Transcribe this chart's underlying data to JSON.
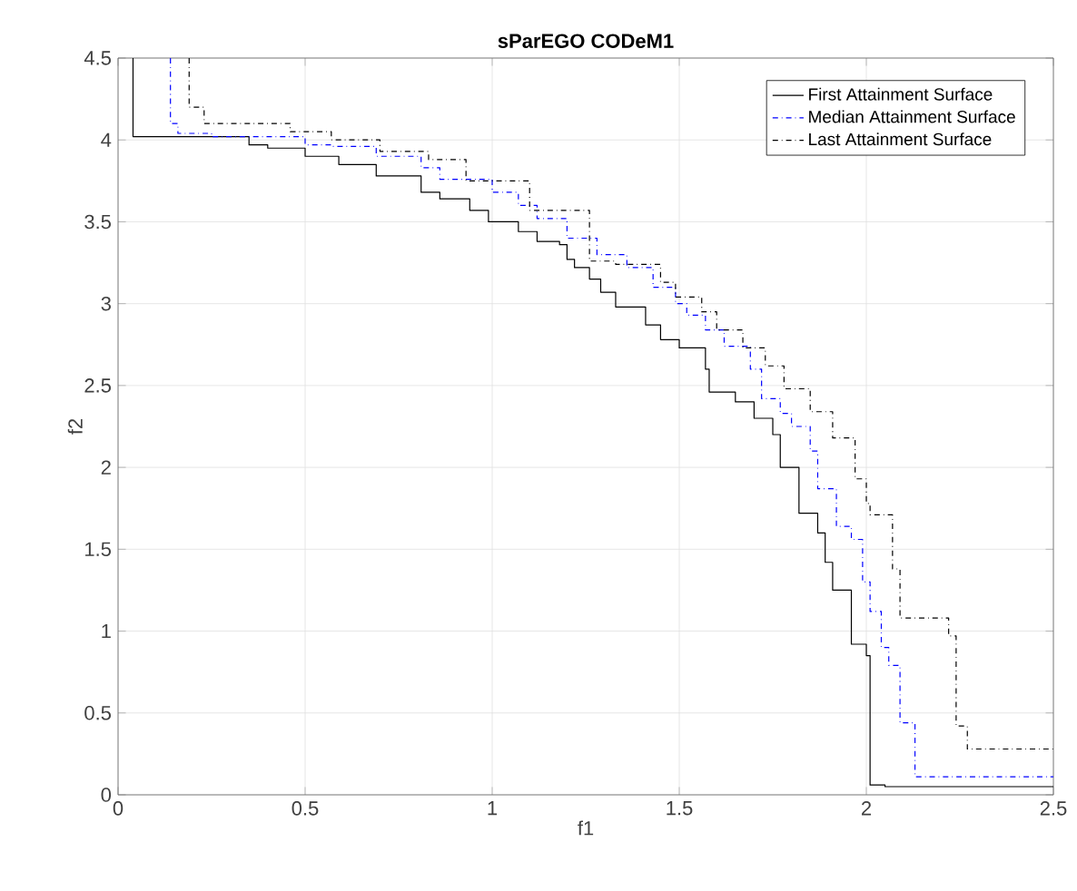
{
  "chart_data": {
    "type": "step",
    "title": "sParEGO CODeM1",
    "xlabel": "f1",
    "ylabel": "f2",
    "xlim": [
      0,
      2.5
    ],
    "ylim": [
      0,
      4.5
    ],
    "xticks": [
      0,
      0.5,
      1,
      1.5,
      2,
      2.5
    ],
    "yticks": [
      0,
      0.5,
      1,
      1.5,
      2,
      2.5,
      3,
      3.5,
      4,
      4.5
    ],
    "grid": true,
    "legend": "top right",
    "marker": "none",
    "series": [
      {
        "name": "First Attainment Surface",
        "color": "#000000",
        "line_style": "solid",
        "x": [
          0.04,
          0.04,
          0.35,
          0.4,
          0.5,
          0.59,
          0.69,
          0.81,
          0.86,
          0.94,
          0.99,
          1.07,
          1.12,
          1.18,
          1.2,
          1.22,
          1.26,
          1.29,
          1.33,
          1.41,
          1.45,
          1.5,
          1.57,
          1.58,
          1.65,
          1.7,
          1.75,
          1.77,
          1.82,
          1.87,
          1.89,
          1.91,
          1.96,
          2.0,
          2.01,
          2.05,
          2.5
        ],
        "values": [
          4.5,
          4.02,
          3.97,
          3.95,
          3.9,
          3.85,
          3.78,
          3.68,
          3.64,
          3.57,
          3.5,
          3.44,
          3.38,
          3.36,
          3.27,
          3.22,
          3.15,
          3.07,
          2.98,
          2.87,
          2.78,
          2.73,
          2.6,
          2.46,
          2.4,
          2.3,
          2.2,
          2.0,
          1.72,
          1.6,
          1.42,
          1.25,
          0.92,
          0.85,
          0.06,
          0.05,
          0.05
        ]
      },
      {
        "name": "Median Attainment Surface",
        "color": "#0000ff",
        "line_style": "dashdot",
        "x": [
          0.14,
          0.14,
          0.16,
          0.25,
          0.5,
          0.57,
          0.69,
          0.81,
          0.86,
          1.0,
          1.07,
          1.12,
          1.2,
          1.28,
          1.36,
          1.43,
          1.49,
          1.52,
          1.57,
          1.62,
          1.69,
          1.72,
          1.77,
          1.8,
          1.85,
          1.87,
          1.92,
          1.96,
          1.99,
          2.01,
          2.04,
          2.06,
          2.09,
          2.13,
          2.5
        ],
        "values": [
          4.5,
          4.1,
          4.04,
          4.02,
          3.97,
          3.96,
          3.9,
          3.83,
          3.76,
          3.68,
          3.6,
          3.52,
          3.4,
          3.3,
          3.22,
          3.1,
          3.0,
          2.93,
          2.84,
          2.74,
          2.6,
          2.42,
          2.33,
          2.25,
          2.1,
          1.87,
          1.64,
          1.56,
          1.3,
          1.12,
          0.9,
          0.79,
          0.44,
          0.11,
          0.11
        ]
      },
      {
        "name": "Last Attainment Surface",
        "color": "#000000",
        "line_style": "dashdot",
        "x": [
          0.19,
          0.19,
          0.23,
          0.46,
          0.57,
          0.7,
          0.83,
          0.93,
          1.1,
          1.26,
          1.33,
          1.45,
          1.49,
          1.56,
          1.6,
          1.67,
          1.73,
          1.78,
          1.85,
          1.91,
          1.97,
          2.0,
          2.01,
          2.07,
          2.09,
          2.22,
          2.24,
          2.27,
          2.5
        ],
        "values": [
          4.5,
          4.2,
          4.1,
          4.05,
          4.0,
          3.93,
          3.88,
          3.75,
          3.57,
          3.26,
          3.24,
          3.13,
          3.04,
          2.95,
          2.84,
          2.73,
          2.62,
          2.48,
          2.34,
          2.18,
          1.93,
          1.78,
          1.71,
          1.38,
          1.08,
          0.97,
          0.42,
          0.28,
          0.28
        ]
      }
    ]
  }
}
